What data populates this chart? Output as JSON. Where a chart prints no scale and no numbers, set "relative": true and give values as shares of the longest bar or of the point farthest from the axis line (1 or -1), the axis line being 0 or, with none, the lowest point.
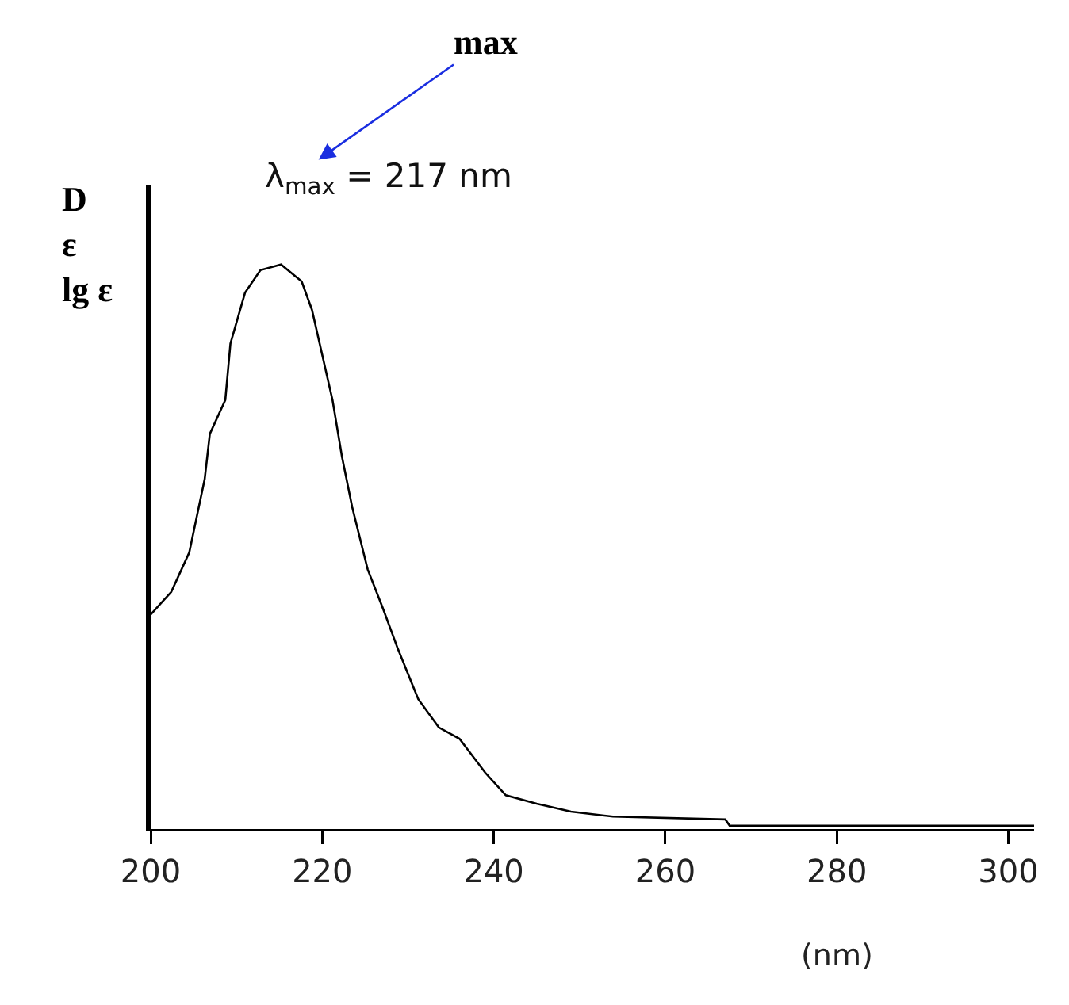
{
  "chart_data": {
    "type": "line",
    "relative": true,
    "xlabel": "(nm)",
    "ylabel": "D\nε\nlg ε",
    "annotations": [
      "max",
      "λ$_{max}$ = 217 nm"
    ],
    "x": [
      200,
      202.4,
      204.5,
      206.3,
      206.9,
      208.7,
      209.3,
      211,
      212.8,
      215.2,
      217.6,
      218.8,
      220,
      221.2,
      222.3,
      223.5,
      225.3,
      227.1,
      228.8,
      231.2,
      233.6,
      236,
      239,
      241.4,
      245,
      249,
      253.9,
      267,
      267.5,
      303
    ],
    "series": [
      {
        "color": "#000000",
        "values": [
          0.38,
          0.42,
          0.49,
          0.62,
          0.7,
          0.76,
          0.86,
          0.95,
          0.99,
          1,
          0.97,
          0.92,
          0.84,
          0.76,
          0.66,
          0.57,
          0.46,
          0.39,
          0.32,
          0.23,
          0.18,
          0.16,
          0.1,
          0.06,
          0.045,
          0.031,
          0.022,
          0.017,
          0.006,
          0.006
        ]
      }
    ],
    "xlim": [
      200,
      303
    ],
    "xticks": [
      200,
      220,
      240,
      260,
      280,
      300
    ],
    "grid": false,
    "marker": "none",
    "line_style": "solid"
  }
}
